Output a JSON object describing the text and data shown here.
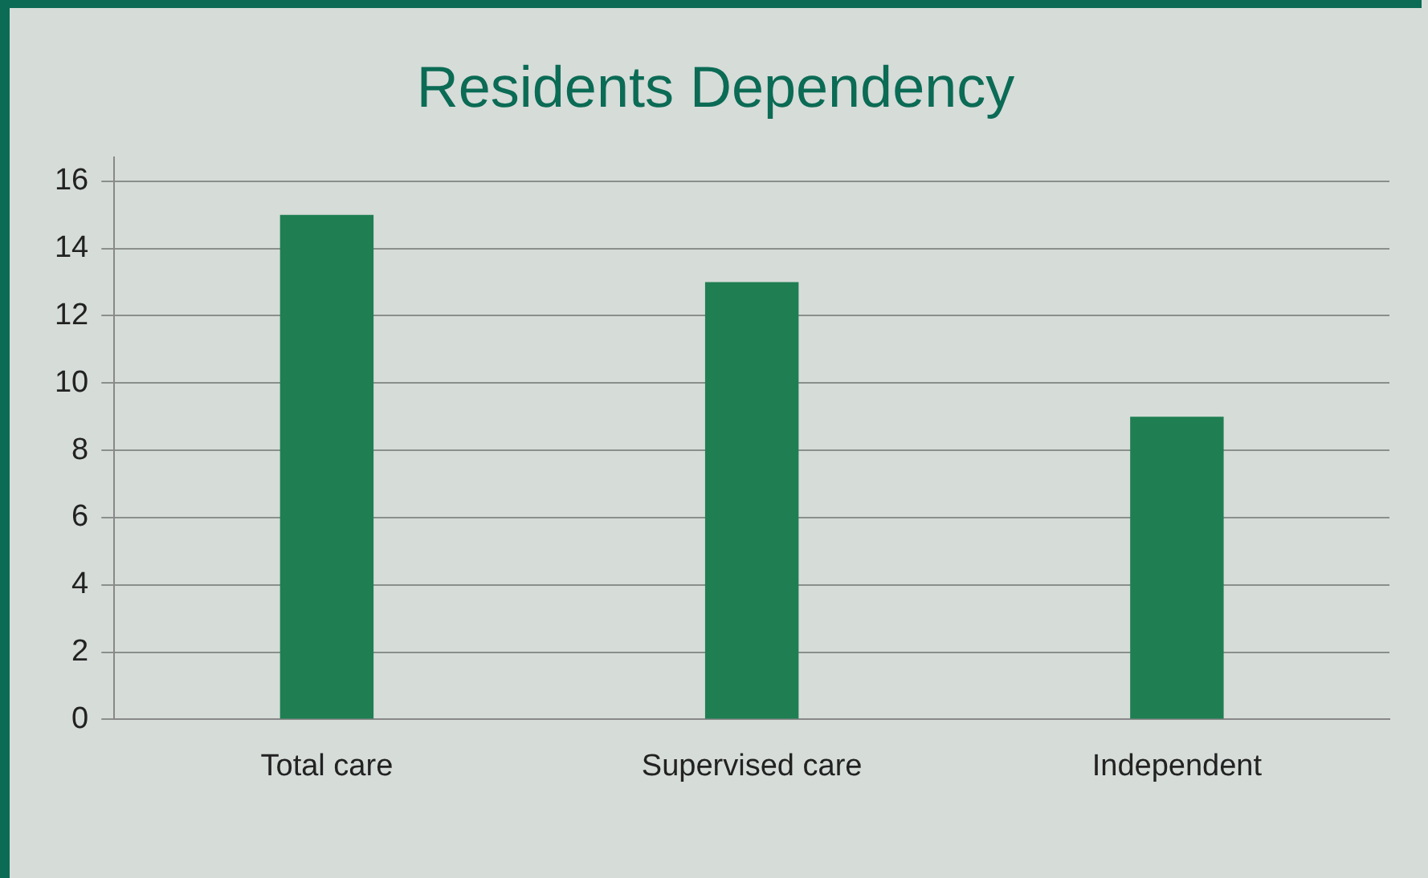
{
  "chart_data": {
    "type": "bar",
    "title": "Residents Dependency",
    "categories": [
      "Total care",
      "Supervised care",
      "Independent"
    ],
    "values": [
      15,
      13,
      9
    ],
    "color": "#1f7f52",
    "ylim": [
      0,
      16.7
    ],
    "yticks": [
      0,
      2,
      4,
      6,
      8,
      10,
      12,
      14,
      16
    ],
    "grid": "y",
    "legend": false
  }
}
